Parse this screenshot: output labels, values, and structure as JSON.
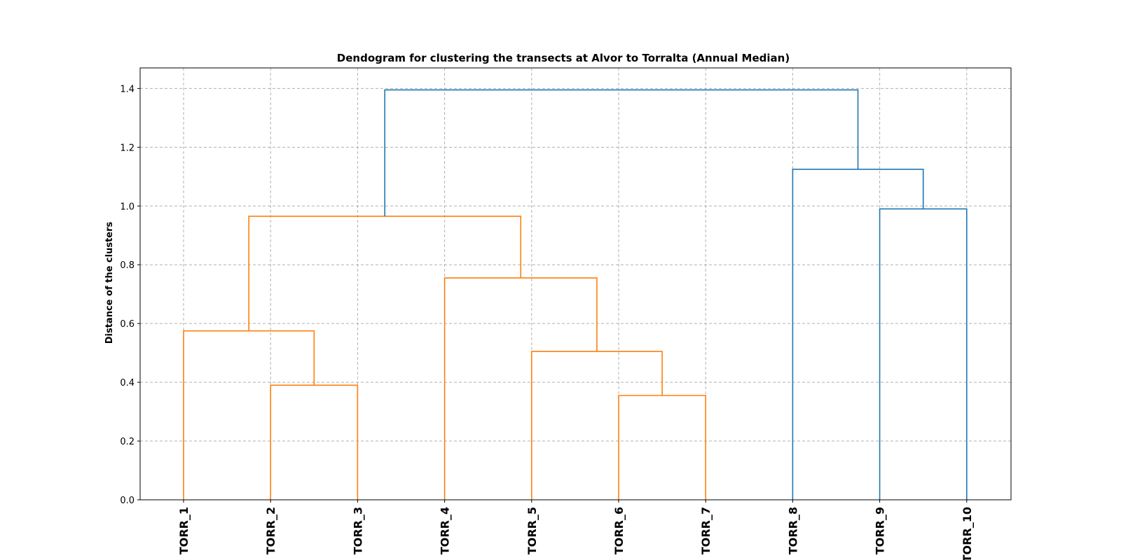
{
  "chart_data": {
    "type": "dendrogram",
    "title": "Dendogram for clustering the transects at Alvor to Torralta (Annual Median)",
    "xlabel": "",
    "ylabel": "Distance of the clusters",
    "ylim": [
      0,
      1.47
    ],
    "yticks": [
      "0.0",
      "0.2",
      "0.4",
      "0.6",
      "0.8",
      "1.0",
      "1.2",
      "1.4"
    ],
    "grid": true,
    "leaves": [
      "TORR_1",
      "TORR_2",
      "TORR_3",
      "TORR_4",
      "TORR_5",
      "TORR_6",
      "TORR_7",
      "TORR_8",
      "TORR_9",
      "TORR_10"
    ],
    "colors": {
      "cluster_a": "#ff7f0e",
      "cluster_b": "#1f77b4",
      "grid": "#b0b0b0",
      "axis": "#000000"
    },
    "links": [
      {
        "left": "TORR_2",
        "right": "TORR_3",
        "height": 0.39,
        "color": "cluster_a"
      },
      {
        "left": "TORR_1",
        "right": "TORR_2+TORR_3",
        "height": 0.575,
        "color": "cluster_a"
      },
      {
        "left": "TORR_6",
        "right": "TORR_7",
        "height": 0.355,
        "color": "cluster_a"
      },
      {
        "left": "TORR_5",
        "right": "TORR_6+TORR_7",
        "height": 0.505,
        "color": "cluster_a"
      },
      {
        "left": "TORR_4",
        "right": "TORR_5..TORR_7",
        "height": 0.755,
        "color": "cluster_a"
      },
      {
        "left": "TORR_1..TORR_3",
        "right": "TORR_4..TORR_7",
        "height": 0.965,
        "color": "cluster_a"
      },
      {
        "left": "TORR_9",
        "right": "TORR_10",
        "height": 0.99,
        "color": "cluster_b"
      },
      {
        "left": "TORR_8",
        "right": "TORR_9+TORR_10",
        "height": 1.125,
        "color": "cluster_b"
      },
      {
        "left": "TORR_1..TORR_7",
        "right": "TORR_8..TORR_10",
        "height": 1.395,
        "color": "cluster_b"
      }
    ]
  }
}
